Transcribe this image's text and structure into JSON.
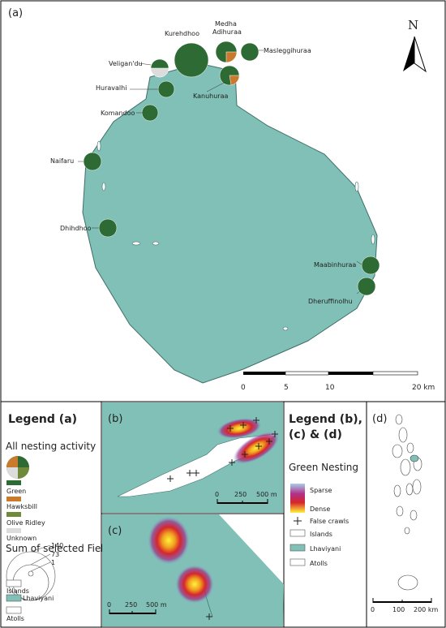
{
  "panel_a": {
    "label": "(a)",
    "north": "N",
    "islands": [
      [
        "Kurehdhoo"
      ],
      [
        "Medha",
        "Adihuraa"
      ],
      [
        "Masleggihuraa"
      ],
      [
        "Veligan'du"
      ],
      [
        "Huravalhi"
      ],
      [
        "Kanuhuraa"
      ],
      [
        "Komandoo"
      ],
      [
        "Naifaru"
      ],
      [
        "Dhihdhoo"
      ],
      [
        "Maabinhuraa"
      ],
      [
        "Dheruffinolhu"
      ]
    ],
    "scale": [
      "0",
      "5",
      "10",
      "20 km"
    ]
  },
  "legend_a": {
    "title": "Legend (a)",
    "pie_title": "All nesting activity",
    "species": [
      "Green",
      "Hawksbill",
      "Olive Ridley",
      "Unknown"
    ],
    "size_title": "Sum of selected Fields",
    "sizes": [
      140,
      73,
      1
    ],
    "layers": [
      "Islands",
      "Lhaviyani",
      "Atolls"
    ]
  },
  "panel_b": {
    "label": "(b)",
    "scale": [
      "0",
      "250",
      "500 m"
    ]
  },
  "panel_c": {
    "label": "(c)",
    "scale": [
      "0",
      "250",
      "500 m"
    ]
  },
  "legend_bcd": {
    "title_lines": [
      "Legend (b),",
      "(c) & (d)"
    ],
    "heat_title": "Green Nesting",
    "heat_ends": [
      "Sparse",
      "Dense"
    ],
    "crawls": "False crawls",
    "layers": [
      "Islands",
      "Lhaviyani",
      "Atolls"
    ]
  },
  "panel_d": {
    "label": "(d)",
    "scale": [
      "0",
      "100",
      "200 km"
    ]
  }
}
